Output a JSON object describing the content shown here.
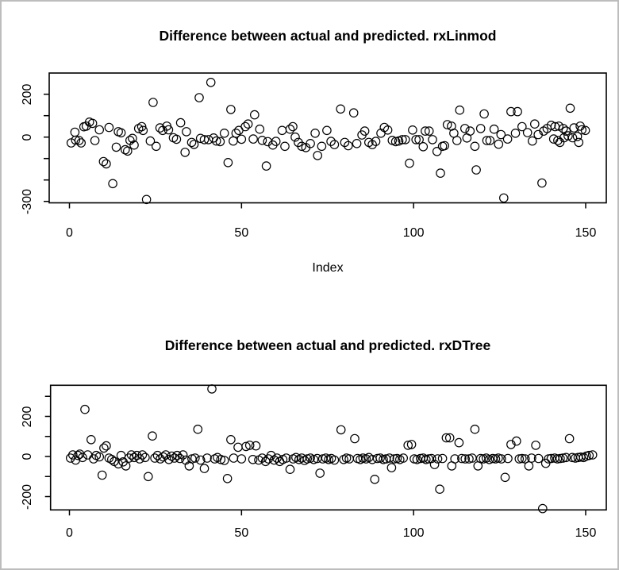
{
  "figure": {
    "background": "#ffffff",
    "border_color": "#bdbdbd",
    "point_color": "#000000"
  },
  "chart_data": [
    {
      "type": "scatter",
      "title": "Difference between actual and predicted. rxLinmod",
      "xlabel": "Index",
      "ylabel": "",
      "xlim": [
        0,
        155
      ],
      "ylim": [
        -306,
        299
      ],
      "grid": false,
      "legend": "none",
      "marker": "open-circle",
      "x_ticks": [
        0,
        50,
        100,
        150
      ],
      "x_tick_labels": [
        "0",
        "50",
        "100",
        "150"
      ],
      "y_ticks": [
        200,
        100,
        0,
        -100,
        -200,
        -300
      ],
      "y_labeled_ticks": [
        200,
        0,
        -300
      ],
      "y_tick_labels": [
        "200",
        "0",
        "-300"
      ],
      "points": [
        [
          0.5,
          -27
        ],
        [
          1.6,
          23
        ],
        [
          1.8,
          -14
        ],
        [
          2.8,
          -16
        ],
        [
          3.4,
          -27
        ],
        [
          4.2,
          48
        ],
        [
          4.9,
          51
        ],
        [
          5.8,
          70
        ],
        [
          6.7,
          64
        ],
        [
          7.4,
          -16
        ],
        [
          8.7,
          34
        ],
        [
          9.9,
          -114
        ],
        [
          10.7,
          -125
        ],
        [
          11.5,
          45
        ],
        [
          12.6,
          -217
        ],
        [
          13.6,
          -47
        ],
        [
          14.2,
          25
        ],
        [
          15,
          20
        ],
        [
          16.2,
          -59
        ],
        [
          16.9,
          -65
        ],
        [
          17.6,
          -15
        ],
        [
          18.3,
          -6
        ],
        [
          18.8,
          -37
        ],
        [
          20.1,
          40
        ],
        [
          21,
          49
        ],
        [
          21.4,
          31
        ],
        [
          22.4,
          -291
        ],
        [
          23.5,
          -18
        ],
        [
          24.3,
          162
        ],
        [
          25.2,
          -43
        ],
        [
          26.3,
          43
        ],
        [
          27.1,
          31
        ],
        [
          28.3,
          51
        ],
        [
          28.8,
          34
        ],
        [
          30.2,
          -3
        ],
        [
          31.1,
          -10
        ],
        [
          32.3,
          67
        ],
        [
          33.6,
          -71
        ],
        [
          34,
          25
        ],
        [
          35.5,
          -25
        ],
        [
          36.2,
          -34
        ],
        [
          37.7,
          184
        ],
        [
          38.1,
          -6
        ],
        [
          39.2,
          -12
        ],
        [
          40.4,
          -12
        ],
        [
          41.1,
          255
        ],
        [
          41.9,
          -4
        ],
        [
          42.7,
          -18
        ],
        [
          43.8,
          -21
        ],
        [
          45,
          18
        ],
        [
          46.1,
          -119
        ],
        [
          46.9,
          129
        ],
        [
          47.6,
          -18
        ],
        [
          48.4,
          18
        ],
        [
          49.2,
          31
        ],
        [
          50,
          -10
        ],
        [
          51.1,
          49
        ],
        [
          51.9,
          61
        ],
        [
          53.4,
          -9
        ],
        [
          53.8,
          104
        ],
        [
          55.3,
          37
        ],
        [
          56,
          -15
        ],
        [
          57.2,
          -135
        ],
        [
          57.6,
          -21
        ],
        [
          59.1,
          -37
        ],
        [
          60,
          -20
        ],
        [
          61.8,
          31
        ],
        [
          62.6,
          -43
        ],
        [
          64.1,
          37
        ],
        [
          64.9,
          49
        ],
        [
          65.6,
          0
        ],
        [
          66.5,
          -25
        ],
        [
          67.5,
          -43
        ],
        [
          68.7,
          -49
        ],
        [
          70,
          -30
        ],
        [
          71.4,
          18
        ],
        [
          72.1,
          -86
        ],
        [
          73.3,
          -43
        ],
        [
          74.8,
          31
        ],
        [
          76,
          -20
        ],
        [
          77,
          -35
        ],
        [
          78.8,
          131
        ],
        [
          80,
          -25
        ],
        [
          81,
          -40
        ],
        [
          82.6,
          113
        ],
        [
          83.5,
          -30
        ],
        [
          85,
          10
        ],
        [
          85.8,
          28
        ],
        [
          87,
          -25
        ],
        [
          88,
          -35
        ],
        [
          89,
          -20
        ],
        [
          90.5,
          18
        ],
        [
          91.5,
          45
        ],
        [
          92.5,
          33
        ],
        [
          93.8,
          -15
        ],
        [
          94.8,
          -21
        ],
        [
          95.7,
          -18
        ],
        [
          96.7,
          -12
        ],
        [
          97.6,
          -12
        ],
        [
          98.8,
          -122
        ],
        [
          99.7,
          33
        ],
        [
          100.7,
          -12
        ],
        [
          101.6,
          -12
        ],
        [
          102.8,
          -45
        ],
        [
          103.4,
          28
        ],
        [
          104.5,
          28
        ],
        [
          105.5,
          -12
        ],
        [
          106.8,
          -67
        ],
        [
          107.8,
          -168
        ],
        [
          108.4,
          -43
        ],
        [
          109,
          -40
        ],
        [
          109.8,
          58
        ],
        [
          111,
          51
        ],
        [
          111.7,
          18
        ],
        [
          112.6,
          -16
        ],
        [
          113.4,
          126
        ],
        [
          114.9,
          40
        ],
        [
          115.5,
          -4
        ],
        [
          116.4,
          28
        ],
        [
          117.8,
          -43
        ],
        [
          118.2,
          -153
        ],
        [
          119.5,
          40
        ],
        [
          120.5,
          108
        ],
        [
          121.3,
          -16
        ],
        [
          122.2,
          -16
        ],
        [
          123.4,
          37
        ],
        [
          124.7,
          -33
        ],
        [
          125.4,
          12
        ],
        [
          126.2,
          -284
        ],
        [
          127.3,
          -9
        ],
        [
          128.3,
          119
        ],
        [
          129.6,
          18
        ],
        [
          130.2,
          119
        ],
        [
          131.5,
          49
        ],
        [
          133.1,
          21
        ],
        [
          134.5,
          -18
        ],
        [
          135.2,
          61
        ],
        [
          136.2,
          12
        ],
        [
          137.3,
          -214
        ],
        [
          137.8,
          28
        ],
        [
          138.8,
          40
        ],
        [
          140,
          55
        ],
        [
          140.7,
          -9
        ],
        [
          141.1,
          49
        ],
        [
          141.9,
          -16
        ],
        [
          142.2,
          51
        ],
        [
          142.5,
          -25
        ],
        [
          143.5,
          40
        ],
        [
          143.7,
          -3
        ],
        [
          144.3,
          28
        ],
        [
          144.9,
          6
        ],
        [
          145.5,
          135
        ],
        [
          146.2,
          -3
        ],
        [
          146.6,
          43
        ],
        [
          147.6,
          3
        ],
        [
          148,
          -25
        ],
        [
          148.4,
          51
        ],
        [
          148.9,
          34
        ],
        [
          149.9,
          31
        ]
      ]
    },
    {
      "type": "scatter",
      "title": "Difference between actual and predicted. rxDTree",
      "xlabel": "",
      "ylabel": "",
      "xlim": [
        0,
        155
      ],
      "ylim": [
        -266,
        355
      ],
      "grid": false,
      "legend": "none",
      "marker": "open-circle",
      "x_ticks": [
        0,
        50,
        100,
        150
      ],
      "x_tick_labels": [
        "0",
        "50",
        "100",
        "150"
      ],
      "y_ticks": [
        300,
        200,
        100,
        0,
        -100,
        -200
      ],
      "y_labeled_ticks": [
        200,
        0,
        -200
      ],
      "y_tick_labels": [
        "200",
        "0",
        "-200"
      ],
      "points": [
        [
          0.3,
          -8
        ],
        [
          1,
          8
        ],
        [
          1.8,
          -18
        ],
        [
          2.5,
          5
        ],
        [
          3,
          12
        ],
        [
          3.8,
          -5
        ],
        [
          4.5,
          235
        ],
        [
          5.3,
          8
        ],
        [
          6.3,
          84
        ],
        [
          7,
          -12
        ],
        [
          7.8,
          5
        ],
        [
          8.7,
          -2
        ],
        [
          9.5,
          -93
        ],
        [
          10,
          42
        ],
        [
          10.7,
          53
        ],
        [
          11.5,
          -8
        ],
        [
          12.3,
          -15
        ],
        [
          13,
          -25
        ],
        [
          14.2,
          -37
        ],
        [
          15,
          5
        ],
        [
          15.6,
          -27
        ],
        [
          16.4,
          -47
        ],
        [
          17.3,
          -8
        ],
        [
          18,
          8
        ],
        [
          18.8,
          -5
        ],
        [
          19.6,
          5
        ],
        [
          20.4,
          -12
        ],
        [
          21.2,
          8
        ],
        [
          22,
          -5
        ],
        [
          22.9,
          -100
        ],
        [
          24.1,
          102
        ],
        [
          24.8,
          -8
        ],
        [
          25.6,
          5
        ],
        [
          26.4,
          -12
        ],
        [
          27.2,
          -2
        ],
        [
          28,
          8
        ],
        [
          28.9,
          -15
        ],
        [
          29.7,
          2
        ],
        [
          30.5,
          -8
        ],
        [
          31.3,
          5
        ],
        [
          32.1,
          -10
        ],
        [
          33,
          8
        ],
        [
          33.8,
          -18
        ],
        [
          34.8,
          -47
        ],
        [
          35.6,
          -12
        ],
        [
          36.5,
          -8
        ],
        [
          37.3,
          136
        ],
        [
          38.1,
          -18
        ],
        [
          39.2,
          -60
        ],
        [
          40,
          -8
        ],
        [
          41.4,
          337
        ],
        [
          42.2,
          -12
        ],
        [
          43,
          -5
        ],
        [
          44,
          -15
        ],
        [
          45,
          -20
        ],
        [
          45.9,
          -110
        ],
        [
          46.9,
          84
        ],
        [
          47.7,
          -8
        ],
        [
          49,
          46
        ],
        [
          50,
          -12
        ],
        [
          51.3,
          50
        ],
        [
          52.4,
          56
        ],
        [
          53.3,
          -15
        ],
        [
          54.2,
          53
        ],
        [
          55,
          -18
        ],
        [
          56,
          -8
        ],
        [
          57,
          -25
        ],
        [
          57.8,
          -12
        ],
        [
          58.6,
          5
        ],
        [
          59.5,
          -18
        ],
        [
          60.3,
          -8
        ],
        [
          61.1,
          -25
        ],
        [
          62,
          -15
        ],
        [
          63,
          -8
        ],
        [
          64.1,
          -64
        ],
        [
          65,
          -12
        ],
        [
          65.8,
          -5
        ],
        [
          66.7,
          -15
        ],
        [
          67.5,
          -8
        ],
        [
          68.3,
          -20
        ],
        [
          69.1,
          -12
        ],
        [
          70,
          -8
        ],
        [
          71,
          -15
        ],
        [
          72,
          -10
        ],
        [
          72.8,
          -83
        ],
        [
          73.6,
          -12
        ],
        [
          74.5,
          -8
        ],
        [
          75.3,
          -15
        ],
        [
          76.1,
          -10
        ],
        [
          77,
          -18
        ],
        [
          78.9,
          133
        ],
        [
          79.7,
          -15
        ],
        [
          80.5,
          -8
        ],
        [
          81.3,
          -12
        ],
        [
          82.9,
          89
        ],
        [
          83.7,
          -10
        ],
        [
          84.5,
          -15
        ],
        [
          85.3,
          -8
        ],
        [
          86.2,
          -12
        ],
        [
          87,
          -5
        ],
        [
          88,
          -15
        ],
        [
          88.7,
          -114
        ],
        [
          89.5,
          -10
        ],
        [
          90.3,
          -8
        ],
        [
          91.2,
          -15
        ],
        [
          92,
          -12
        ],
        [
          93,
          -8
        ],
        [
          93.6,
          -56
        ],
        [
          94.4,
          -12
        ],
        [
          95.2,
          -10
        ],
        [
          96,
          -15
        ],
        [
          97,
          -8
        ],
        [
          98.4,
          56
        ],
        [
          99.4,
          60
        ],
        [
          100.2,
          -12
        ],
        [
          101,
          -15
        ],
        [
          102,
          -10
        ],
        [
          102.8,
          -8
        ],
        [
          103.6,
          -15
        ],
        [
          104.4,
          -12
        ],
        [
          105.2,
          -10
        ],
        [
          106.1,
          -40
        ],
        [
          107,
          -12
        ],
        [
          107.6,
          -163
        ],
        [
          108.4,
          -10
        ],
        [
          109.5,
          93
        ],
        [
          110.5,
          93
        ],
        [
          111.1,
          -47
        ],
        [
          112,
          -12
        ],
        [
          113.2,
          69
        ],
        [
          114,
          -10
        ],
        [
          115,
          -12
        ],
        [
          116.1,
          -12
        ],
        [
          117,
          -8
        ],
        [
          117.8,
          136
        ],
        [
          118.7,
          -47
        ],
        [
          119.5,
          -10
        ],
        [
          120.3,
          -12
        ],
        [
          121.1,
          -8
        ],
        [
          122,
          -15
        ],
        [
          123,
          -10
        ],
        [
          123.8,
          -12
        ],
        [
          124.6,
          -8
        ],
        [
          125.5,
          -12
        ],
        [
          126.6,
          -104
        ],
        [
          127.4,
          -10
        ],
        [
          128.3,
          60
        ],
        [
          129.9,
          77
        ],
        [
          130.7,
          -12
        ],
        [
          131.5,
          -10
        ],
        [
          132.4,
          -12
        ],
        [
          133.5,
          -47
        ],
        [
          134.3,
          -8
        ],
        [
          135.5,
          56
        ],
        [
          136.3,
          -10
        ],
        [
          137.5,
          -260
        ],
        [
          138.4,
          -34
        ],
        [
          139.2,
          -12
        ],
        [
          140,
          -10
        ],
        [
          141,
          -8
        ],
        [
          141.8,
          -12
        ],
        [
          142.6,
          -10
        ],
        [
          143.4,
          -8
        ],
        [
          144.3,
          -5
        ],
        [
          145.3,
          89
        ],
        [
          146.1,
          -5
        ],
        [
          147,
          -8
        ],
        [
          147.8,
          -5
        ],
        [
          148.6,
          -3
        ],
        [
          149.4,
          -5
        ],
        [
          150.2,
          2
        ],
        [
          151,
          5
        ],
        [
          152,
          8
        ]
      ]
    }
  ]
}
